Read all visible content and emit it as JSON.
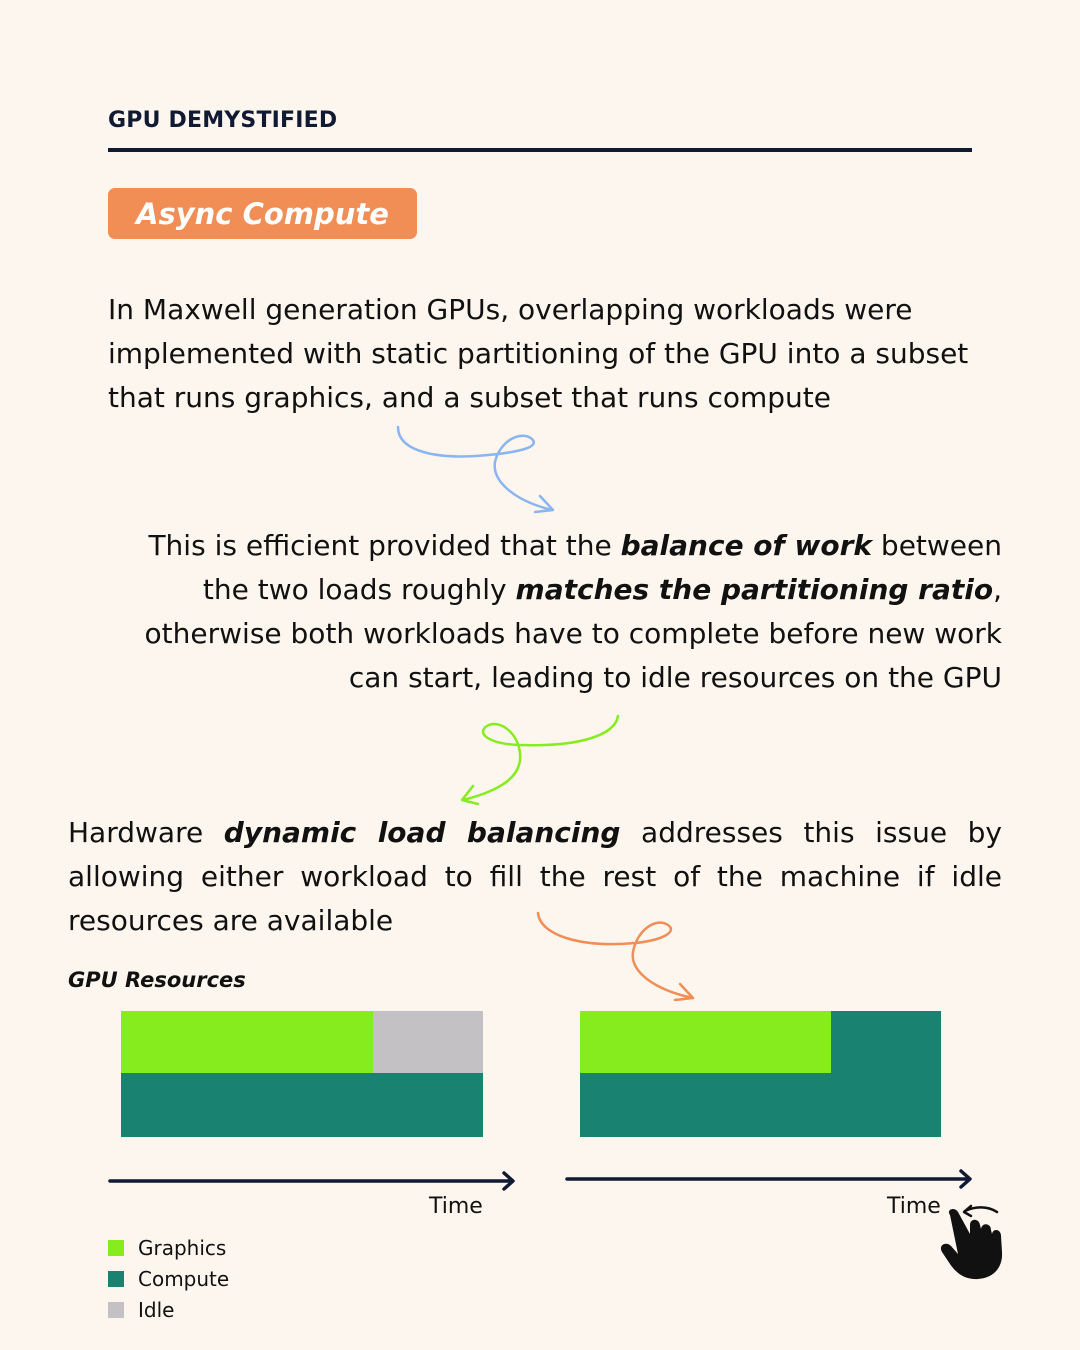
{
  "header": {
    "brand": "GPU DEMYSTIFIED"
  },
  "badge": {
    "label": "Async Compute"
  },
  "para1": {
    "text": "In Maxwell generation GPUs, overlapping workloads were implemented with static partitioning of the GPU into a subset that runs graphics, and a subset that runs compute"
  },
  "para2": {
    "t1": "This is efficient provided that the ",
    "e1": "balance of work",
    "t2": " between the two loads roughly ",
    "e2": "matches the partitioning ratio",
    "t3": ", otherwise both workloads have to complete before new work can start, leading to idle resources on the GPU"
  },
  "para3": {
    "t1": "Hardware ",
    "e1": "dynamic load balancing",
    "t2": " addresses this issue by allowing either workload to fill the rest of the machine if idle resources are available"
  },
  "diagram": {
    "resources_label": "GPU Resources",
    "axis_label_left": "Time",
    "axis_label_right": "Time",
    "colors": {
      "graphics": "#86ec1e",
      "compute": "#1a8270",
      "idle": "#c3c1c4",
      "text": "#111a33"
    }
  },
  "legend": {
    "items": [
      {
        "label": "Graphics",
        "color": "#86ec1e"
      },
      {
        "label": "Compute",
        "color": "#1a8270"
      },
      {
        "label": "Idle",
        "color": "#c3c1c4"
      }
    ]
  },
  "icons": {
    "pointer": "hand-pointer-icon"
  }
}
